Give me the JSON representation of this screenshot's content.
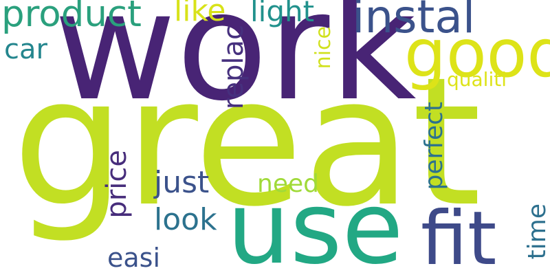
{
  "words": {
    "great": {
      "text": "great",
      "color": "#c2df23"
    },
    "work": {
      "text": "work",
      "color": "#482475"
    },
    "use": {
      "text": "use",
      "color": "#22a884"
    },
    "fit": {
      "text": "fit",
      "color": "#3e4a89"
    },
    "good": {
      "text": "good",
      "color": "#dde318"
    },
    "instal": {
      "text": "instal",
      "color": "#3b528b"
    },
    "product": {
      "text": "product",
      "color": "#2aa07d"
    },
    "like": {
      "text": "like",
      "color": "#d8e219"
    },
    "light": {
      "text": "light",
      "color": "#21918c"
    },
    "car": {
      "text": "car",
      "color": "#24868e"
    },
    "replac": {
      "text": "replac",
      "color": "#46307e"
    },
    "nice": {
      "text": "nice",
      "color": "#d0e11c"
    },
    "qualiti": {
      "text": "qualiti",
      "color": "#dde318"
    },
    "perfect": {
      "text": "perfect",
      "color": "#2c728e"
    },
    "price": {
      "text": "price",
      "color": "#472d7b"
    },
    "just": {
      "text": "just",
      "color": "#3b528b"
    },
    "need": {
      "text": "need",
      "color": "#a0da39"
    },
    "look": {
      "text": "look",
      "color": "#2c728e"
    },
    "easi": {
      "text": "easi",
      "color": "#3b528b"
    },
    "time": {
      "text": "time",
      "color": "#2d708e"
    }
  }
}
